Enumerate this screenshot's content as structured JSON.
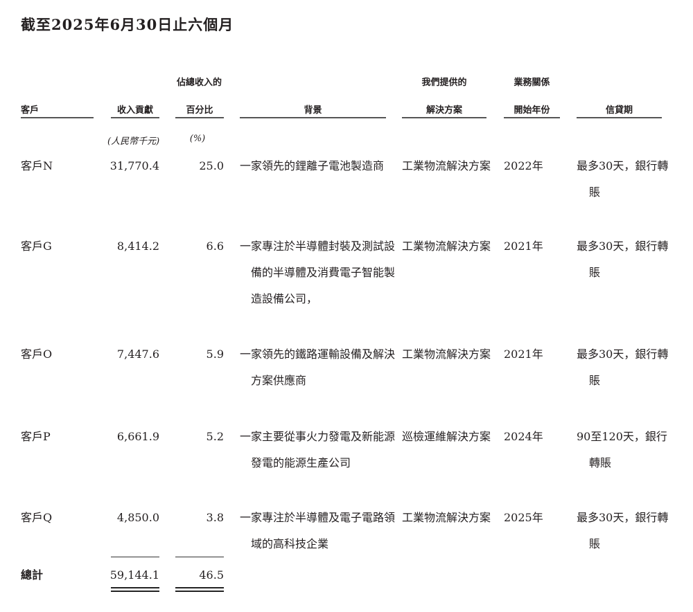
{
  "title": "截至2025年6月30日止六個月",
  "headers": {
    "customer": "客戶",
    "revenue": "收入貢獻",
    "pct_line1": "佔總收入的",
    "pct_line2": "百分比",
    "background": "背景",
    "solution_line1": "我們提供的",
    "solution_line2": "解決方案",
    "start_line1": "業務關係",
    "start_line2": "開始年份",
    "credit": "信貸期"
  },
  "units": {
    "revenue": "(人民幣千元)",
    "pct": "(%)"
  },
  "rows": [
    {
      "customer": "客戶N",
      "revenue": "31,770.4",
      "pct": "25.0",
      "background": "一家領先的鋰離子電池製造商",
      "solution": "工業物流解決方案",
      "start_year": "2022年",
      "credit": "最多30天，銀行轉賬"
    },
    {
      "customer": "客戶G",
      "revenue": "8,414.2",
      "pct": "6.6",
      "background": "一家專注於半導體封裝及測試設備的半導體及消費電子智能製造設備公司，",
      "solution": "工業物流解決方案",
      "start_year": "2021年",
      "credit": "最多30天，銀行轉賬"
    },
    {
      "customer": "客戶O",
      "revenue": "7,447.6",
      "pct": "5.9",
      "background": "一家領先的鐵路運輸設備及解決方案供應商",
      "solution": "工業物流解決方案",
      "start_year": "2021年",
      "credit": "最多30天，銀行轉賬"
    },
    {
      "customer": "客戶P",
      "revenue": "6,661.9",
      "pct": "5.2",
      "background": "一家主要從事火力發電及新能源發電的能源生產公司",
      "solution": "巡檢運維解決方案",
      "start_year": "2024年",
      "credit": "90至120天，銀行轉賬"
    },
    {
      "customer": "客戶Q",
      "revenue": "4,850.0",
      "pct": "3.8",
      "background": "一家專注於半導體及電子電路領域的高科技企業",
      "solution": "工業物流解決方案",
      "start_year": "2025年",
      "credit": "最多30天，銀行轉賬"
    }
  ],
  "total": {
    "label": "總計",
    "revenue": "59,144.1",
    "pct": "46.5"
  }
}
